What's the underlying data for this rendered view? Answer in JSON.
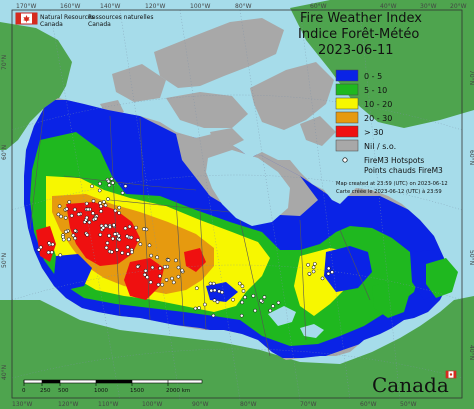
{
  "header": {
    "agency_en": "Natural Resources",
    "agency_fr": "Ressources naturelles",
    "country_en": "Canada",
    "country_fr": "Canada"
  },
  "title": {
    "en": "Fire Weather Index",
    "fr": "Indice Forêt-Météo",
    "date": "2023-06-11"
  },
  "legend": {
    "items": [
      {
        "label": "0 - 5",
        "color": "#0a23e6"
      },
      {
        "label": "5 - 10",
        "color": "#1fb81f"
      },
      {
        "label": "10 - 20",
        "color": "#f7f700"
      },
      {
        "label": "20 - 30",
        "color": "#e69a0f"
      },
      {
        "label": "> 30",
        "color": "#ef1010"
      },
      {
        "label": "Nil / s.o.",
        "color": "#a8a8a8"
      }
    ],
    "hotspots_en": "FireM3 Hotspots",
    "hotspots_fr": "Points chauds FireM3"
  },
  "notes": {
    "created_en": "Map created at 23:59 (UTC) on 2023-06-12",
    "created_fr": "Carte créée le 2023-06-12 (UTC) à 23:59"
  },
  "graticule": {
    "top": [
      "170°W",
      "160°W",
      "140°W",
      "120°W",
      "100°W",
      "80°W",
      "60°W",
      "40°W",
      "30°W",
      "20°W"
    ],
    "bottom": [
      "130°W",
      "120°W",
      "110°W",
      "100°W",
      "90°W",
      "80°W",
      "70°W",
      "60°W",
      "50°W"
    ],
    "left": [
      "70°N",
      "60°N",
      "50°N",
      "40°N"
    ],
    "right": [
      "70°N",
      "60°N",
      "50°N",
      "40°N"
    ]
  },
  "scale_bar": {
    "ticks": [
      "0",
      "250",
      "500",
      "1000",
      "1500",
      "2000 km"
    ]
  },
  "wordmark": "Canada",
  "colors": {
    "ocean": "#a6dcea",
    "land_other": "#4ea44e",
    "nil": "#a8a8a8",
    "low": "#0a23e6",
    "mod": "#1fb81f",
    "high": "#f7f700",
    "vhigh": "#e69a0f",
    "extreme": "#ef1010"
  }
}
